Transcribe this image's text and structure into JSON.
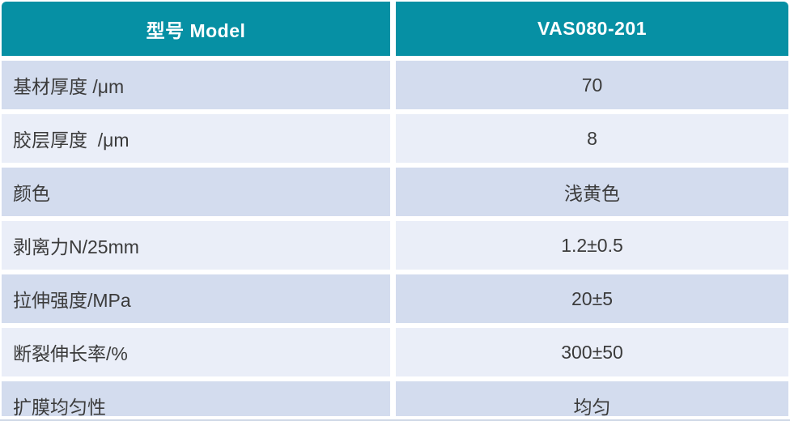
{
  "table": {
    "header": {
      "model_label": "型号 Model",
      "model_value": "VAS080-201"
    },
    "rows": [
      {
        "label": "基材厚度 /μm",
        "value": "70"
      },
      {
        "label": "胶层厚度  /μm",
        "value": "8"
      },
      {
        "label": "颜色",
        "value": "浅黄色"
      },
      {
        "label": "剥离力N/25mm",
        "value": "1.2±0.5"
      },
      {
        "label": "拉伸强度/MPa",
        "value": "20±5"
      },
      {
        "label": "断裂伸长率/%",
        "value": "300±50"
      },
      {
        "label": "扩膜均匀性",
        "value": "均匀"
      }
    ],
    "colors": {
      "header_bg": "#0690a4",
      "header_text": "#ffffff",
      "row_odd_bg": "#d3dcee",
      "row_even_bg": "#eaeef8",
      "cell_text": "#3b3b3b",
      "divider": "#ffffff",
      "hairline": "#cfd8e6"
    }
  }
}
